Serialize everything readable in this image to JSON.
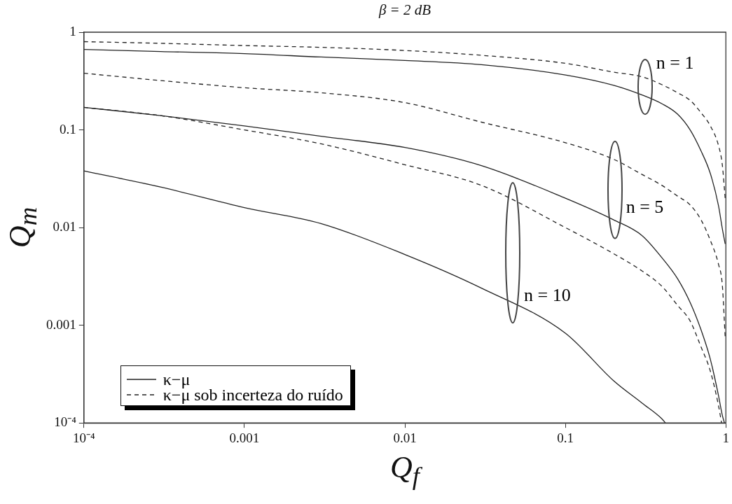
{
  "chart_data": {
    "type": "line",
    "title": "β = 2 dB",
    "xlabel": "Q$_{f}$",
    "ylabel": "Q$_{m}$",
    "log": "xy",
    "grid": false,
    "legend": "bottom left",
    "marker": "none",
    "xlim": [
      0.0001,
      1
    ],
    "ylim": [
      0.0001,
      1
    ],
    "xticks": [
      {
        "value": 0.0001,
        "label": "10⁻⁴"
      },
      0.001,
      0.01,
      0.1,
      1
    ],
    "yticks": [
      {
        "value": 0.0001,
        "label": "10⁻⁴"
      },
      0.001,
      0.01,
      0.1,
      1
    ],
    "series": [
      {
        "name": "κ−μ",
        "color": "#222222",
        "line_style": "solid",
        "x": [
          0.0001,
          0.0003,
          0.001,
          0.003,
          0.01,
          0.03,
          0.1,
          0.2,
          0.3,
          0.4,
          0.5,
          0.6,
          0.7,
          0.8,
          0.9,
          0.95,
          0.99
        ],
        "values": [
          0.667,
          0.634,
          0.604,
          0.557,
          0.514,
          0.466,
          0.365,
          0.286,
          0.228,
          0.185,
          0.145,
          0.0995,
          0.061,
          0.0358,
          0.0167,
          0.0098,
          0.0068
        ]
      },
      {
        "name": "κ−μ sob incerteza do ruído",
        "color": "#222222",
        "line_style": "dashed",
        "x": [
          0.0001,
          0.0003,
          0.001,
          0.003,
          0.01,
          0.03,
          0.1,
          0.2,
          0.3,
          0.4,
          0.5,
          0.6,
          0.7,
          0.8,
          0.9,
          0.95,
          0.99
        ],
        "values": [
          0.8,
          0.77,
          0.73,
          0.7,
          0.65,
          0.58,
          0.48,
          0.39,
          0.35,
          0.29,
          0.24,
          0.2,
          0.15,
          0.11,
          0.069,
          0.044,
          0.02
        ]
      },
      {
        "color": "#222222",
        "line_style": "solid",
        "x": [
          0.0001,
          0.0003,
          0.001,
          0.003,
          0.01,
          0.03,
          0.1,
          0.2,
          0.3,
          0.4,
          0.5,
          0.6,
          0.7,
          0.8,
          0.9,
          0.95,
          0.98
        ],
        "values": [
          0.17,
          0.14,
          0.11,
          0.086,
          0.066,
          0.043,
          0.02,
          0.012,
          0.0083,
          0.0049,
          0.003,
          0.0017,
          0.0009,
          0.00045,
          0.00019,
          0.00012,
          0.0001
        ]
      },
      {
        "color": "#222222",
        "line_style": "dashed",
        "x": [
          0.0001,
          0.0003,
          0.001,
          0.003,
          0.01,
          0.03,
          0.1,
          0.2,
          0.3,
          0.4,
          0.5,
          0.6,
          0.7,
          0.8,
          0.9,
          0.95,
          0.99
        ],
        "values": [
          0.38,
          0.32,
          0.27,
          0.24,
          0.19,
          0.12,
          0.074,
          0.05,
          0.035,
          0.027,
          0.021,
          0.017,
          0.012,
          0.0074,
          0.0042,
          0.0026,
          0.00076
        ]
      },
      {
        "color": "#222222",
        "line_style": "solid",
        "x": [
          0.0001,
          0.0003,
          0.001,
          0.003,
          0.01,
          0.03,
          0.1,
          0.2,
          0.3,
          0.4,
          0.42
        ],
        "values": [
          0.038,
          0.026,
          0.016,
          0.011,
          0.0053,
          0.0024,
          0.00083,
          0.00027,
          0.00016,
          0.00011,
          0.0001
        ]
      },
      {
        "color": "#222222",
        "line_style": "dashed",
        "x": [
          0.0001,
          0.0003,
          0.001,
          0.003,
          0.01,
          0.03,
          0.1,
          0.2,
          0.3,
          0.4,
          0.5,
          0.6,
          0.7,
          0.8,
          0.9,
          0.94
        ],
        "values": [
          0.17,
          0.14,
          0.1,
          0.072,
          0.044,
          0.027,
          0.01,
          0.0054,
          0.0036,
          0.0025,
          0.0016,
          0.0011,
          0.0006,
          0.00034,
          0.00015,
          0.0001
        ]
      }
    ],
    "annotations": [
      "n = 1",
      "n = 5",
      "n = 10"
    ]
  }
}
